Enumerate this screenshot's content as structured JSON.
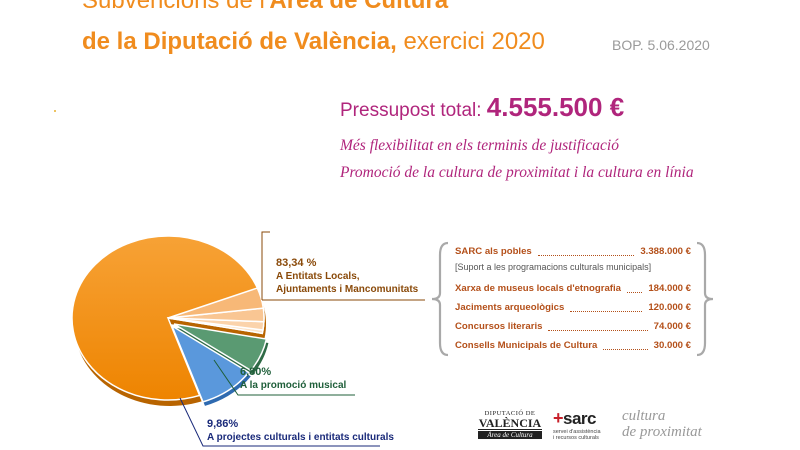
{
  "header": {
    "title_line1_light": "Subvencions de l'",
    "title_line1_bold": "Àrea de Cultura",
    "title_line2_bold": "de la Diputació de València,",
    "title_line2_light": " exercici 2020",
    "source": "BOP. 5.06.2020"
  },
  "budget": {
    "label": "Pressupost total: ",
    "value": "4.555.500 €"
  },
  "notes": [
    "Més flexibilitat en els terminis de justificació",
    "Promoció de la cultura de proximitat i la cultura en línia"
  ],
  "chart_data": {
    "type": "pie",
    "slices": [
      {
        "label": "A Entitats Locals, Ajuntaments i Mancomunitats",
        "percent": 83.34,
        "percent_text": "83,34 %",
        "color": "#f28c00"
      },
      {
        "label": "A la promoció musical",
        "percent": 6.8,
        "percent_text": "6,80%",
        "color": "#5a9a72"
      },
      {
        "label": "A projectes culturals i entitats culturals",
        "percent": 9.86,
        "percent_text": "9,86%",
        "color": "#5a98dc"
      }
    ],
    "legend_orange_lines": [
      "A Entitats Locals,",
      "Ajuntaments i Mancomunitats"
    ],
    "breakdown": [
      {
        "label": "SARC als pobles",
        "amount": "3.388.000 €"
      },
      {
        "label": "[Suport a les programacions culturals municipals]",
        "amount": ""
      },
      {
        "label": "Xarxa de museus locals d'etnografia",
        "amount": "184.000 €"
      },
      {
        "label": "Jaciments arqueològics",
        "amount": "120.000 €"
      },
      {
        "label": "Concursos literaris",
        "amount": "74.000 €"
      },
      {
        "label": "Consells Municipals de Cultura",
        "amount": "30.000 €"
      }
    ],
    "breakdown_values": [
      3388000,
      184000,
      120000,
      74000,
      30000
    ]
  },
  "logos": {
    "diputacio_top": "DIPUTACIÓ DE",
    "diputacio_name": "VALÈNCIA",
    "diputacio_area": "Àrea de Cultura",
    "sarc_name": "sarc",
    "sarc_sub": "servei d'assistència i recursos culturals",
    "cultura_line1": "cultura",
    "cultura_line2": "de proximitat"
  }
}
